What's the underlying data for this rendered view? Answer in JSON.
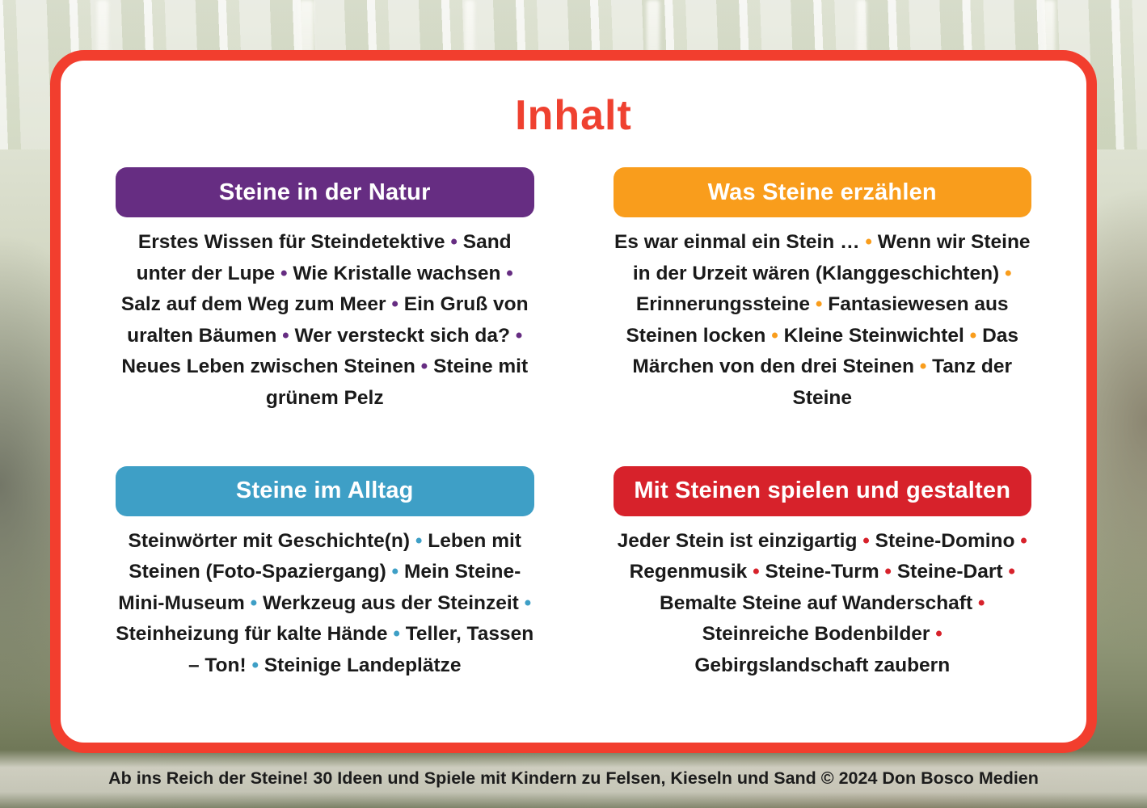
{
  "title": "Inhalt",
  "footer": "Ab ins Reich der Steine! 30 Ideen und Spiele mit Kindern zu Felsen, Kieseln und Sand © 2024 Don Bosco Medien",
  "colors": {
    "card_border": "#f23e2e",
    "title": "#ef4130",
    "text": "#1a1a1a",
    "section_purple": "#662d82",
    "section_orange": "#f99d1c",
    "section_blue": "#3e9fc6",
    "section_red": "#d7222b"
  },
  "sections": [
    {
      "label": "Steine in der Natur",
      "color": "#662d82",
      "items": [
        "Erstes Wissen für Steindetektive",
        "Sand unter der Lupe",
        "Wie Kristalle wachsen",
        "Salz auf dem Weg zum Meer",
        "Ein Gruß von uralten Bäumen",
        "Wer versteckt sich da?",
        "Neues Leben zwischen Steinen",
        "Steine mit grünem Pelz"
      ]
    },
    {
      "label": "Was Steine erzählen",
      "color": "#f99d1c",
      "items": [
        "Es war einmal ein Stein …",
        "Wenn wir Steine in der Urzeit wären (Klanggeschichten)",
        "Erinnerungssteine",
        "Fantasiewesen aus Steinen locken",
        "Kleine Steinwichtel",
        "Das Märchen von den drei Steinen",
        "Tanz der Steine"
      ]
    },
    {
      "label": "Steine im Alltag",
      "color": "#3e9fc6",
      "items": [
        "Steinwörter mit Geschichte(n)",
        "Leben mit Steinen (Foto-Spaziergang)",
        "Mein Steine-Mini-Museum",
        "Werkzeug aus der Steinzeit",
        "Steinheizung für kalte Hände",
        "Teller, Tassen – Ton!",
        "Steinige Landeplätze"
      ]
    },
    {
      "label": "Mit Steinen spielen und gestalten",
      "color": "#d7222b",
      "items": [
        "Jeder Stein ist einzigartig",
        "Steine-Domino",
        "Regenmusik",
        "Steine-Turm",
        "Steine-Dart",
        "Bemalte Steine auf Wanderschaft",
        "Steinreiche Bodenbilder",
        "Gebirgslandschaft zaubern"
      ]
    }
  ]
}
